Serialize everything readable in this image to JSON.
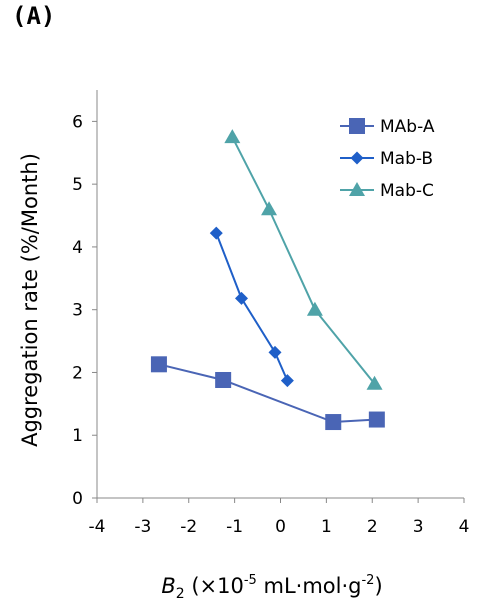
{
  "panel_label": "(A)",
  "chart_data": {
    "type": "line",
    "title": "",
    "xlabel_italic": "B",
    "xlabel_sub": "2",
    "xlabel_rest": " (×10",
    "xlabel_exp": "-5",
    "xlabel_units": " mL·mol·g",
    "xlabel_exp2": "-2",
    "xlabel_close": ")",
    "ylabel": "Aggregation rate  (%/Month)",
    "xlim": [
      -4,
      4
    ],
    "ylim": [
      0,
      6.5
    ],
    "xticks": [
      -4,
      -3,
      -2,
      -1,
      0,
      1,
      2,
      3,
      4
    ],
    "yticks": [
      0,
      1,
      2,
      3,
      4,
      5,
      6
    ],
    "grid": false,
    "legend_position": "top-right",
    "series": [
      {
        "name": "MAb-A",
        "marker": "square",
        "color": "#4a65b5",
        "x": [
          -2.65,
          -1.25,
          1.15,
          2.1
        ],
        "y": [
          2.13,
          1.88,
          1.21,
          1.25
        ]
      },
      {
        "name": "Mab-B",
        "marker": "diamond",
        "color": "#1f5fc8",
        "x": [
          -1.4,
          -0.85,
          -0.12,
          0.15
        ],
        "y": [
          4.22,
          3.18,
          2.32,
          1.87
        ]
      },
      {
        "name": "Mab-C",
        "marker": "triangle",
        "color": "#4fa3a8",
        "x": [
          -1.05,
          -0.25,
          0.75,
          2.05
        ],
        "y": [
          5.75,
          4.6,
          3.0,
          1.82
        ]
      }
    ]
  }
}
